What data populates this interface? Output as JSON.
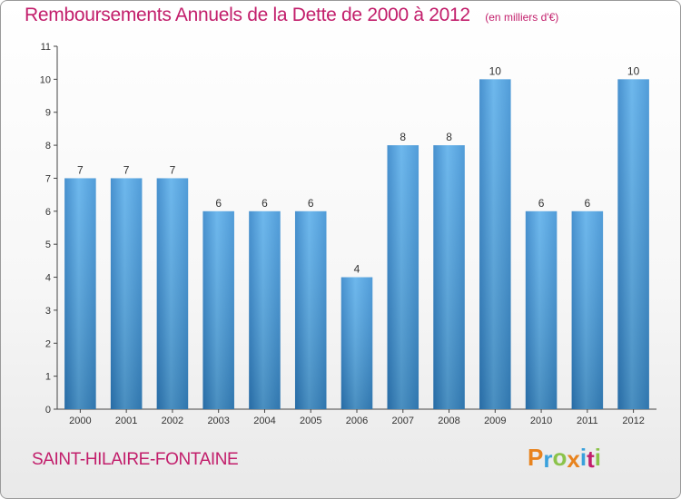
{
  "header": {
    "title": "Remboursements Annuels de la Dette de 2000 à 2012",
    "unit": "(en milliers d'€)"
  },
  "footer": {
    "commune": "SAINT-HILAIRE-FONTAINE",
    "logo": "Proxiti",
    "logo_colors": [
      "#e8831e",
      "#3aa1dc",
      "#8bc34a",
      "#e8831e",
      "#3aa1dc",
      "#c21e6b",
      "#8bc34a"
    ]
  },
  "chart_data": {
    "type": "bar",
    "title": "Remboursements Annuels de la Dette de 2000 à 2012",
    "subtitle": "(en milliers d'€)",
    "categories": [
      "2000",
      "2001",
      "2002",
      "2003",
      "2004",
      "2005",
      "2006",
      "2007",
      "2008",
      "2009",
      "2010",
      "2011",
      "2012"
    ],
    "values": [
      7,
      7,
      7,
      6,
      6,
      6,
      4,
      8,
      8,
      10,
      6,
      6,
      10
    ],
    "data_labels": [
      "7",
      "7",
      "7",
      "6",
      "6",
      "6",
      "4",
      "8",
      "8",
      "10",
      "6",
      "6",
      "10"
    ],
    "y_ticks": [
      "0",
      "1",
      "2",
      "3",
      "4",
      "5",
      "6",
      "7",
      "8",
      "9",
      "10",
      "11"
    ],
    "ylim": [
      0,
      11
    ],
    "grid": false,
    "bar_color": "#3a95d9",
    "xlabel": "",
    "ylabel": ""
  }
}
